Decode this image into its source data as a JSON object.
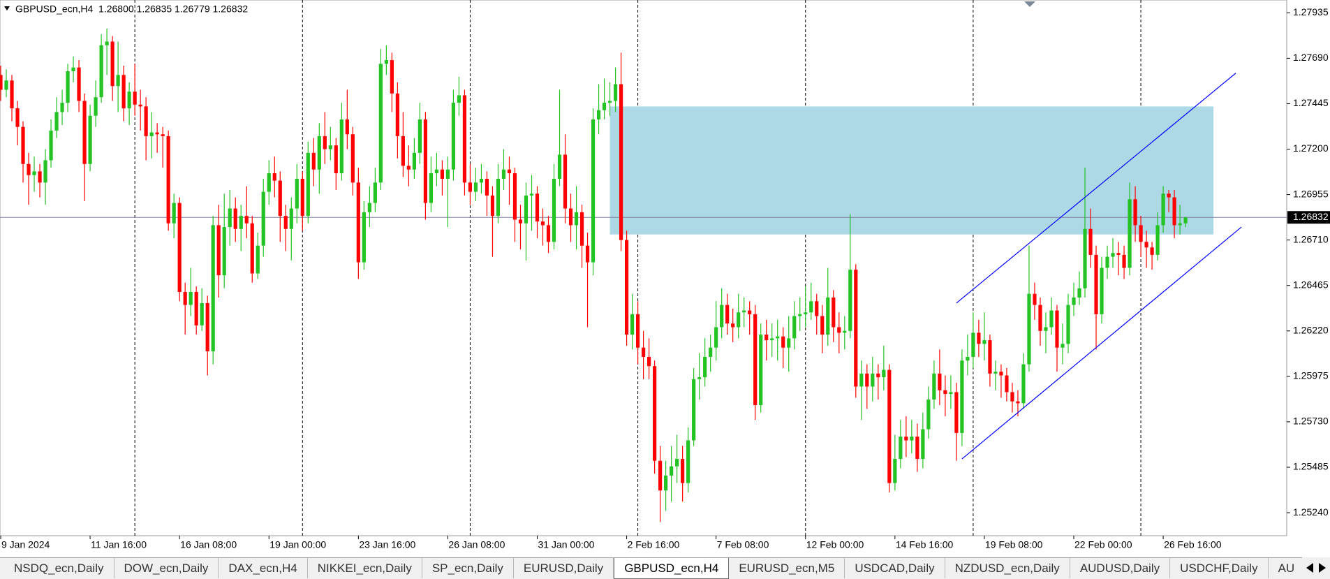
{
  "chart_data": {
    "type": "candlestick",
    "title": "GBPUSD_ecn,H4  1.26800 1.26835 1.26779 1.26832",
    "up_color": "#22c322",
    "down_color": "#ff0000",
    "xlim": [
      -0.125,
      230.1
    ],
    "ylim": [
      1.25116,
      1.28004
    ],
    "yticks": [
      1.27935,
      {
        "value": 1.2769,
        "label": "1.27690"
      },
      1.27445,
      {
        "value": 1.272,
        "label": "1.27200"
      },
      1.26955,
      {
        "value": 1.2671,
        "label": "1.26710"
      },
      1.26465,
      {
        "value": 1.2622,
        "label": "1.26220"
      },
      1.25975,
      {
        "value": 1.2573,
        "label": "1.25730"
      },
      1.25485,
      {
        "value": 1.2524,
        "label": "1.25240"
      }
    ],
    "xticks": [
      {
        "value": 0,
        "label": "9 Jan 2024"
      },
      {
        "value": 16,
        "label": "11 Jan 16:00"
      },
      {
        "value": 32,
        "label": "16 Jan 08:00"
      },
      {
        "value": 48,
        "label": "19 Jan 00:00"
      },
      {
        "value": 64,
        "label": "23 Jan 16:00"
      },
      {
        "value": 80,
        "label": "26 Jan 08:00"
      },
      {
        "value": 96,
        "label": "31 Jan 00:00"
      },
      {
        "value": 112,
        "label": "2 Feb 16:00"
      },
      {
        "value": 128,
        "label": "7 Feb 08:00"
      },
      {
        "value": 144,
        "label": "12 Feb 00:00"
      },
      {
        "value": 160,
        "label": "14 Feb 16:00"
      },
      {
        "value": 176,
        "label": "19 Feb 08:00"
      },
      {
        "value": 192,
        "label": "22 Feb 00:00"
      },
      {
        "value": 208,
        "label": "26 Feb 16:00"
      }
    ],
    "separators": [
      24,
      54,
      84,
      114,
      144,
      174,
      204
    ],
    "price_line": 1.26832,
    "price_line_color": "#8080a0",
    "zone": {
      "x": [
        109,
        217
      ],
      "y": [
        1.2674,
        1.2743
      ],
      "color": "#add8e6"
    },
    "lines": [
      {
        "x": [
          171,
          221
        ],
        "y": [
          1.2637,
          1.2761
        ]
      },
      {
        "x": [
          172,
          222
        ],
        "y": [
          1.2553,
          1.2678
        ]
      }
    ],
    "line_color": "#0000ff",
    "ohlc": [
      [
        1.276,
        1.2765,
        1.2746,
        1.2752
      ],
      [
        1.2752,
        1.2763,
        1.2748,
        1.2757
      ],
      [
        1.2757,
        1.276,
        1.2735,
        1.2742
      ],
      [
        1.2742,
        1.2746,
        1.2722,
        1.2732
      ],
      [
        1.2732,
        1.2735,
        1.2702,
        1.2712
      ],
      [
        1.2712,
        1.2718,
        1.269,
        1.2706
      ],
      [
        1.2706,
        1.2716,
        1.2697,
        1.2708
      ],
      [
        1.2708,
        1.2712,
        1.2694,
        1.2702
      ],
      [
        1.2702,
        1.272,
        1.269,
        1.2714
      ],
      [
        1.2714,
        1.2736,
        1.271,
        1.273
      ],
      [
        1.273,
        1.2748,
        1.2726,
        1.274
      ],
      [
        1.274,
        1.2752,
        1.2733,
        1.2745
      ],
      [
        1.2745,
        1.2766,
        1.274,
        1.2762
      ],
      [
        1.2762,
        1.277,
        1.2756,
        1.2764
      ],
      [
        1.2764,
        1.2768,
        1.274,
        1.2746
      ],
      [
        1.2746,
        1.275,
        1.2692,
        1.2712
      ],
      [
        1.2712,
        1.2744,
        1.2708,
        1.2738
      ],
      [
        1.2738,
        1.2757,
        1.2732,
        1.2748
      ],
      [
        1.2748,
        1.2782,
        1.2745,
        1.2776
      ],
      [
        1.2776,
        1.2785,
        1.276,
        1.2778
      ],
      [
        1.2778,
        1.2781,
        1.2746,
        1.2754
      ],
      [
        1.2754,
        1.2778,
        1.274,
        1.276
      ],
      [
        1.276,
        1.2765,
        1.2735,
        1.2742
      ],
      [
        1.2742,
        1.2756,
        1.2733,
        1.2751
      ],
      [
        1.2751,
        1.2766,
        1.2738,
        1.2744
      ],
      [
        1.2744,
        1.2752,
        1.273,
        1.2743
      ],
      [
        1.2743,
        1.2748,
        1.2714,
        1.2727
      ],
      [
        1.2727,
        1.274,
        1.2715,
        1.2729
      ],
      [
        1.2729,
        1.2734,
        1.2718,
        1.2728
      ],
      [
        1.2728,
        1.2732,
        1.271,
        1.2727
      ],
      [
        1.2727,
        1.273,
        1.2676,
        1.268
      ],
      [
        1.268,
        1.2696,
        1.2672,
        1.2691
      ],
      [
        1.2691,
        1.2694,
        1.2638,
        1.2643
      ],
      [
        1.2643,
        1.2648,
        1.262,
        1.2636
      ],
      [
        1.2636,
        1.2656,
        1.263,
        1.2643
      ],
      [
        1.2643,
        1.2646,
        1.262,
        1.2625
      ],
      [
        1.2625,
        1.2645,
        1.2622,
        1.2637
      ],
      [
        1.2637,
        1.2641,
        1.2598,
        1.2611
      ],
      [
        1.2611,
        1.2684,
        1.2604,
        1.2679
      ],
      [
        1.2679,
        1.269,
        1.264,
        1.2652
      ],
      [
        1.2652,
        1.2696,
        1.2645,
        1.2678
      ],
      [
        1.2678,
        1.2698,
        1.2668,
        1.2688
      ],
      [
        1.2688,
        1.2694,
        1.267,
        1.2677
      ],
      [
        1.2677,
        1.269,
        1.2665,
        1.2684
      ],
      [
        1.2684,
        1.27,
        1.2672,
        1.268
      ],
      [
        1.268,
        1.2684,
        1.2648,
        1.2653
      ],
      [
        1.2653,
        1.2675,
        1.265,
        1.2668
      ],
      [
        1.2668,
        1.2704,
        1.2662,
        1.2697
      ],
      [
        1.2697,
        1.2714,
        1.269,
        1.2707
      ],
      [
        1.2707,
        1.2716,
        1.2694,
        1.2703
      ],
      [
        1.2703,
        1.2708,
        1.267,
        1.2684
      ],
      [
        1.2684,
        1.269,
        1.2665,
        1.2677
      ],
      [
        1.2677,
        1.2694,
        1.266,
        1.2688
      ],
      [
        1.2688,
        1.2712,
        1.268,
        1.2704
      ],
      [
        1.2704,
        1.2708,
        1.2676,
        1.2684
      ],
      [
        1.2684,
        1.2724,
        1.268,
        1.2718
      ],
      [
        1.2718,
        1.2726,
        1.27,
        1.2709
      ],
      [
        1.2709,
        1.2734,
        1.2696,
        1.2727
      ],
      [
        1.2727,
        1.274,
        1.2712,
        1.272
      ],
      [
        1.272,
        1.2732,
        1.2714,
        1.2722
      ],
      [
        1.2722,
        1.2726,
        1.2698,
        1.2707
      ],
      [
        1.2707,
        1.2745,
        1.2703,
        1.2736
      ],
      [
        1.2736,
        1.2752,
        1.272,
        1.2728
      ],
      [
        1.2728,
        1.2732,
        1.2695,
        1.2702
      ],
      [
        1.2702,
        1.271,
        1.265,
        1.2659
      ],
      [
        1.2659,
        1.2692,
        1.2655,
        1.2686
      ],
      [
        1.2686,
        1.27,
        1.2678,
        1.2691
      ],
      [
        1.2691,
        1.271,
        1.2686,
        1.2702
      ],
      [
        1.2702,
        1.2774,
        1.2698,
        1.2766
      ],
      [
        1.2766,
        1.2776,
        1.276,
        1.2768
      ],
      [
        1.2768,
        1.2772,
        1.274,
        1.275
      ],
      [
        1.275,
        1.2756,
        1.2715,
        1.2727
      ],
      [
        1.2727,
        1.274,
        1.2705,
        1.2711
      ],
      [
        1.2711,
        1.2722,
        1.27,
        1.2709
      ],
      [
        1.2709,
        1.2726,
        1.2704,
        1.2718
      ],
      [
        1.2718,
        1.2745,
        1.2712,
        1.2736
      ],
      [
        1.2736,
        1.274,
        1.2682,
        1.2691
      ],
      [
        1.2691,
        1.2716,
        1.2686,
        1.2707
      ],
      [
        1.2707,
        1.2718,
        1.27,
        1.2709
      ],
      [
        1.2709,
        1.2714,
        1.2695,
        1.2704
      ],
      [
        1.2704,
        1.2716,
        1.2678,
        1.2709
      ],
      [
        1.2709,
        1.2752,
        1.2703,
        1.2745
      ],
      [
        1.2745,
        1.2759,
        1.2738,
        1.2749
      ],
      [
        1.2749,
        1.2752,
        1.2695,
        1.2702
      ],
      [
        1.2702,
        1.2712,
        1.269,
        1.2697
      ],
      [
        1.2697,
        1.271,
        1.2692,
        1.2702
      ],
      [
        1.2702,
        1.2712,
        1.2696,
        1.2704
      ],
      [
        1.2704,
        1.2708,
        1.2684,
        1.2695
      ],
      [
        1.2695,
        1.27,
        1.2662,
        1.2684
      ],
      [
        1.2684,
        1.2712,
        1.268,
        1.2704
      ],
      [
        1.2704,
        1.272,
        1.2698,
        1.2709
      ],
      [
        1.2709,
        1.2716,
        1.269,
        1.2707
      ],
      [
        1.2707,
        1.271,
        1.267,
        1.2682
      ],
      [
        1.2682,
        1.269,
        1.2666,
        1.268
      ],
      [
        1.268,
        1.2702,
        1.266,
        1.2695
      ],
      [
        1.2695,
        1.2706,
        1.2676,
        1.2696
      ],
      [
        1.2696,
        1.27,
        1.2672,
        1.2681
      ],
      [
        1.2681,
        1.2688,
        1.2668,
        1.2679
      ],
      [
        1.2679,
        1.2684,
        1.2664,
        1.267
      ],
      [
        1.267,
        1.2712,
        1.2666,
        1.2704
      ],
      [
        1.2704,
        1.2752,
        1.27,
        1.2717
      ],
      [
        1.2717,
        1.2728,
        1.268,
        1.2688
      ],
      [
        1.2688,
        1.2696,
        1.267,
        1.2679
      ],
      [
        1.2679,
        1.27,
        1.2666,
        1.2686
      ],
      [
        1.2686,
        1.269,
        1.2656,
        1.2668
      ],
      [
        1.2668,
        1.2675,
        1.2624,
        1.2659
      ],
      [
        1.2659,
        1.2742,
        1.2652,
        1.2736
      ],
      [
        1.2736,
        1.2755,
        1.2728,
        1.2741
      ],
      [
        1.2741,
        1.2758,
        1.2736,
        1.2745
      ],
      [
        1.2745,
        1.2756,
        1.2738,
        1.2746
      ],
      [
        1.2746,
        1.2764,
        1.274,
        1.2755
      ],
      [
        1.2755,
        1.2772,
        1.2665,
        1.2671
      ],
      [
        1.2671,
        1.2676,
        1.2614,
        1.262
      ],
      [
        1.262,
        1.2642,
        1.2612,
        1.2631
      ],
      [
        1.2631,
        1.2638,
        1.2604,
        1.2613
      ],
      [
        1.2613,
        1.2622,
        1.2596,
        1.2608
      ],
      [
        1.2608,
        1.2618,
        1.2596,
        1.2603
      ],
      [
        1.2603,
        1.2606,
        1.2545,
        1.2552
      ],
      [
        1.2552,
        1.256,
        1.2519,
        1.2536
      ],
      [
        1.2536,
        1.2552,
        1.2525,
        1.2544
      ],
      [
        1.2544,
        1.256,
        1.253,
        1.2549
      ],
      [
        1.2549,
        1.2566,
        1.254,
        1.2553
      ],
      [
        1.2553,
        1.256,
        1.253,
        1.254
      ],
      [
        1.254,
        1.257,
        1.2535,
        1.2563
      ],
      [
        1.2563,
        1.2602,
        1.256,
        1.2596
      ],
      [
        1.2596,
        1.261,
        1.2585,
        1.2597
      ],
      [
        1.2597,
        1.2618,
        1.2592,
        1.2608
      ],
      [
        1.2608,
        1.262,
        1.26,
        1.2613
      ],
      [
        1.2613,
        1.2638,
        1.2606,
        1.2624
      ],
      [
        1.2624,
        1.2645,
        1.2618,
        1.2636
      ],
      [
        1.2636,
        1.2642,
        1.262,
        1.2626
      ],
      [
        1.2626,
        1.2634,
        1.2616,
        1.2624
      ],
      [
        1.2624,
        1.2642,
        1.2618,
        1.2632
      ],
      [
        1.2632,
        1.264,
        1.2624,
        1.2633
      ],
      [
        1.2633,
        1.2638,
        1.262,
        1.2631
      ],
      [
        1.2631,
        1.2636,
        1.2574,
        1.2582
      ],
      [
        1.2582,
        1.2626,
        1.2578,
        1.262
      ],
      [
        1.262,
        1.2628,
        1.2606,
        1.2617
      ],
      [
        1.2617,
        1.2626,
        1.2608,
        1.2618
      ],
      [
        1.2618,
        1.2628,
        1.2606,
        1.2619
      ],
      [
        1.2619,
        1.2624,
        1.2602,
        1.2613
      ],
      [
        1.2613,
        1.263,
        1.26,
        1.2618
      ],
      [
        1.2618,
        1.2638,
        1.2612,
        1.263
      ],
      [
        1.263,
        1.264,
        1.2622,
        1.2631
      ],
      [
        1.2631,
        1.2646,
        1.2624,
        1.2632
      ],
      [
        1.2632,
        1.2648,
        1.2628,
        1.2638
      ],
      [
        1.2638,
        1.2642,
        1.262,
        1.263
      ],
      [
        1.263,
        1.2636,
        1.261,
        1.262
      ],
      [
        1.262,
        1.2656,
        1.2614,
        1.264
      ],
      [
        1.264,
        1.2644,
        1.2616,
        1.2624
      ],
      [
        1.2624,
        1.2632,
        1.261,
        1.2621
      ],
      [
        1.2621,
        1.263,
        1.2612,
        1.2622
      ],
      [
        1.2622,
        1.2685,
        1.2618,
        1.2655
      ],
      [
        1.2655,
        1.2658,
        1.2586,
        1.2592
      ],
      [
        1.2592,
        1.2606,
        1.2574,
        1.2599
      ],
      [
        1.2599,
        1.2604,
        1.258,
        1.2592
      ],
      [
        1.2592,
        1.2608,
        1.2584,
        1.2599
      ],
      [
        1.2599,
        1.2604,
        1.2585,
        1.2597
      ],
      [
        1.2597,
        1.2614,
        1.259,
        1.2601
      ],
      [
        1.2601,
        1.2604,
        1.2535,
        1.254
      ],
      [
        1.254,
        1.2566,
        1.2536,
        1.2553
      ],
      [
        1.2553,
        1.2574,
        1.2548,
        1.2565
      ],
      [
        1.2565,
        1.2576,
        1.2554,
        1.2563
      ],
      [
        1.2563,
        1.2574,
        1.2556,
        1.2565
      ],
      [
        1.2565,
        1.2572,
        1.2546,
        1.2553
      ],
      [
        1.2553,
        1.2578,
        1.2548,
        1.2569
      ],
      [
        1.2569,
        1.2592,
        1.2564,
        1.2585
      ],
      [
        1.2585,
        1.2606,
        1.258,
        1.2599
      ],
      [
        1.2599,
        1.2612,
        1.2582,
        1.259
      ],
      [
        1.259,
        1.2598,
        1.2576,
        1.2588
      ],
      [
        1.2588,
        1.2598,
        1.258,
        1.2589
      ],
      [
        1.2589,
        1.2594,
        1.2552,
        1.2567
      ],
      [
        1.2567,
        1.2612,
        1.256,
        1.2606
      ],
      [
        1.2606,
        1.262,
        1.2598,
        1.2608
      ],
      [
        1.2608,
        1.2632,
        1.2602,
        1.2621
      ],
      [
        1.2621,
        1.2628,
        1.2608,
        1.2615
      ],
      [
        1.2615,
        1.2632,
        1.2606,
        1.2617
      ],
      [
        1.2617,
        1.262,
        1.2592,
        1.2599
      ],
      [
        1.2599,
        1.2606,
        1.259,
        1.26
      ],
      [
        1.26,
        1.2604,
        1.2586,
        1.2598
      ],
      [
        1.2598,
        1.2602,
        1.2584,
        1.2589
      ],
      [
        1.2589,
        1.2594,
        1.2578,
        1.2584
      ],
      [
        1.2584,
        1.259,
        1.2576,
        1.2583
      ],
      [
        1.2583,
        1.261,
        1.258,
        1.2604
      ],
      [
        1.2604,
        1.2668,
        1.26,
        1.2642
      ],
      [
        1.2642,
        1.2648,
        1.2628,
        1.2636
      ],
      [
        1.2636,
        1.264,
        1.2614,
        1.2622
      ],
      [
        1.2622,
        1.2632,
        1.261,
        1.2624
      ],
      [
        1.2624,
        1.264,
        1.262,
        1.2633
      ],
      [
        1.2633,
        1.2636,
        1.26,
        1.2613
      ],
      [
        1.2613,
        1.2626,
        1.2604,
        1.2615
      ],
      [
        1.2615,
        1.2642,
        1.261,
        1.2636
      ],
      [
        1.2636,
        1.2648,
        1.263,
        1.264
      ],
      [
        1.264,
        1.2654,
        1.2636,
        1.2645
      ],
      [
        1.2645,
        1.271,
        1.264,
        1.2677
      ],
      [
        1.2677,
        1.2688,
        1.2656,
        1.2663
      ],
      [
        1.2663,
        1.2668,
        1.2612,
        1.2631
      ],
      [
        1.2631,
        1.2662,
        1.2626,
        1.2656
      ],
      [
        1.2656,
        1.2668,
        1.265,
        1.2662
      ],
      [
        1.2662,
        1.2672,
        1.2656,
        1.2664
      ],
      [
        1.2664,
        1.267,
        1.2652,
        1.2663
      ],
      [
        1.2663,
        1.2668,
        1.265,
        1.2656
      ],
      [
        1.2656,
        1.2702,
        1.2652,
        1.2693
      ],
      [
        1.2693,
        1.27,
        1.267,
        1.2679
      ],
      [
        1.2679,
        1.2684,
        1.2662,
        1.267
      ],
      [
        1.267,
        1.2676,
        1.2656,
        1.2667
      ],
      [
        1.2667,
        1.267,
        1.2655,
        1.2663
      ],
      [
        1.2663,
        1.2686,
        1.266,
        1.2679
      ],
      [
        1.2679,
        1.27,
        1.2675,
        1.2696
      ],
      [
        1.2696,
        1.2698,
        1.2686,
        1.2694
      ],
      [
        1.2694,
        1.2698,
        1.2672,
        1.2679
      ],
      [
        1.2679,
        1.269,
        1.2674,
        1.268
      ],
      [
        1.268,
        1.26835,
        1.26779,
        1.26832
      ]
    ]
  },
  "tabs": [
    "NSDQ_ecn,Daily",
    "DOW_ecn,Daily",
    "DAX_ecn,H4",
    "NIKKEI_ecn,Daily",
    "SP_ecn,Daily",
    "EURUSD,Daily",
    "GBPUSD_ecn,H4",
    "EURUSD_ecn,M5",
    "USDCAD,Daily",
    "NZDUSD_ecn,Daily",
    "AUDUSD,Daily",
    "USDCHF,Daily",
    "AU"
  ],
  "active_tab": 6
}
